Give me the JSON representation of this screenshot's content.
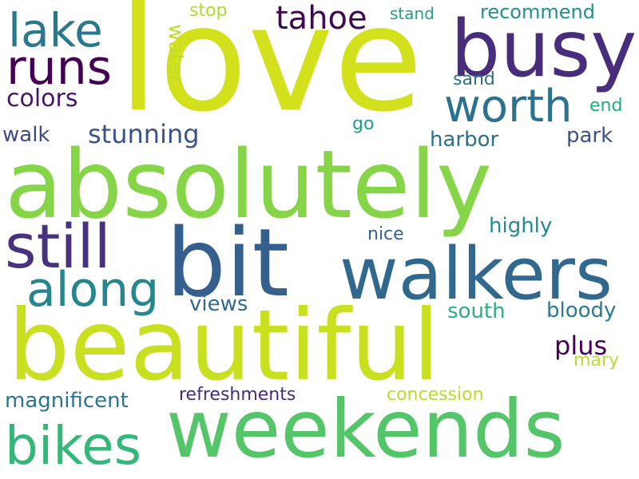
{
  "words": [
    {
      "id": "love",
      "text": "love",
      "color": "#d2e11b"
    },
    {
      "id": "absolutely",
      "text": "absolutely",
      "color": "#86d549"
    },
    {
      "id": "beautiful",
      "text": "beautiful",
      "color": "#c8e020"
    },
    {
      "id": "weekends",
      "text": "weekends",
      "color": "#54c568"
    },
    {
      "id": "bit",
      "text": "bit",
      "color": "#355f8d"
    },
    {
      "id": "busy",
      "text": "busy",
      "color": "#472d7b"
    },
    {
      "id": "walkers",
      "text": "walkers",
      "color": "#31688e"
    },
    {
      "id": "still",
      "text": "still",
      "color": "#46327e"
    },
    {
      "id": "bikes",
      "text": "bikes",
      "color": "#35b779"
    },
    {
      "id": "worth",
      "text": "worth",
      "color": "#2c728e"
    },
    {
      "id": "runs",
      "text": "runs",
      "color": "#440154"
    },
    {
      "id": "lake",
      "text": "lake",
      "color": "#2a788e"
    },
    {
      "id": "along",
      "text": "along",
      "color": "#24868e"
    },
    {
      "id": "tahoe",
      "text": "tahoe",
      "color": "#3e0a51"
    },
    {
      "id": "stunning",
      "text": "stunning",
      "color": "#3b528b"
    },
    {
      "id": "colors",
      "text": "colors",
      "color": "#481769"
    },
    {
      "id": "water",
      "text": "water",
      "color": "#bddf26"
    },
    {
      "id": "walk",
      "text": "walk",
      "color": "#3e4a89"
    },
    {
      "id": "views",
      "text": "views",
      "color": "#306a8e"
    },
    {
      "id": "plus",
      "text": "plus",
      "color": "#440154"
    },
    {
      "id": "magnificent",
      "text": "magnificent",
      "color": "#2b758e"
    },
    {
      "id": "refreshments",
      "text": "refreshments",
      "color": "#472a7a"
    },
    {
      "id": "concession",
      "text": "concession",
      "color": "#b5de2b"
    },
    {
      "id": "stop",
      "text": "stop",
      "color": "#addc30"
    },
    {
      "id": "stand",
      "text": "stand",
      "color": "#1fa187"
    },
    {
      "id": "recommend",
      "text": "recommend",
      "color": "#21918c"
    },
    {
      "id": "sand",
      "text": "sand",
      "color": "#2d708e"
    },
    {
      "id": "end",
      "text": "end",
      "color": "#23a983"
    },
    {
      "id": "go",
      "text": "go",
      "color": "#1f9e89"
    },
    {
      "id": "harbor",
      "text": "harbor",
      "color": "#2d708e"
    },
    {
      "id": "park",
      "text": "park",
      "color": "#3b528b"
    },
    {
      "id": "highly",
      "text": "highly",
      "color": "#228c8d"
    },
    {
      "id": "nice",
      "text": "nice",
      "color": "#33638d"
    },
    {
      "id": "south",
      "text": "south",
      "color": "#2ab07f"
    },
    {
      "id": "bloody",
      "text": "bloody",
      "color": "#287c8e"
    },
    {
      "id": "mary",
      "text": "mary",
      "color": "#b8de29"
    }
  ]
}
